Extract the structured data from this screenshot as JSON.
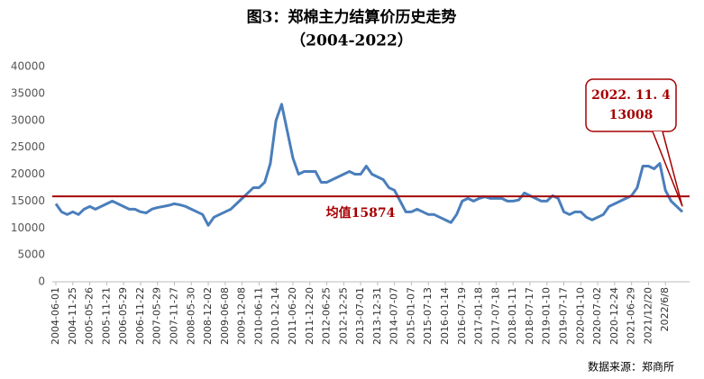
{
  "chart_data": {
    "type": "line",
    "title": "图3：郑棉主力结算价历史走势",
    "subtitle": "（2004-2022）",
    "source": "数据来源：郑商所",
    "categories": [
      "2004-06-01",
      null,
      null,
      "2004-11-25",
      null,
      null,
      "2005-05-26",
      null,
      null,
      "2005-11-21",
      null,
      null,
      "2006-05-29",
      null,
      null,
      "2006-11-22",
      null,
      null,
      "2007-05-29",
      null,
      null,
      "2007-11-27",
      null,
      null,
      "2008-05-30",
      null,
      null,
      "2008-12-02",
      null,
      null,
      "2009-06-08",
      null,
      null,
      "2009-12-08",
      null,
      null,
      "2010-06-11",
      null,
      null,
      "2010-12-14",
      null,
      null,
      "2011-06-20",
      null,
      null,
      "2011-12-20",
      null,
      null,
      "2012-06-25",
      null,
      null,
      "2012-12-25",
      null,
      null,
      "2013-07-01",
      null,
      null,
      "2013-12-31",
      null,
      null,
      "2014-07-07",
      null,
      null,
      "2015-01-07",
      null,
      null,
      "2015-07-13",
      null,
      null,
      "2016-01-14",
      null,
      null,
      "2016-07-19",
      null,
      null,
      "2017-01-18",
      null,
      null,
      "2017-07-18",
      null,
      null,
      "2018-01-11",
      null,
      null,
      "2018-07-17",
      null,
      null,
      "2019-01-10",
      null,
      null,
      "2019-07-17",
      null,
      null,
      "2020-01-10",
      null,
      null,
      "2020-07-02",
      null,
      null,
      "2020-12-24",
      null,
      null,
      "2021-06-29",
      null,
      null,
      "2021/12/20",
      null,
      null,
      "2022/6/8",
      null,
      null,
      null
    ],
    "series": [
      {
        "name": "郑棉主力结算价",
        "color": "#4a7ebb",
        "values": [
          14500,
          13000,
          12500,
          13000,
          12500,
          13500,
          14000,
          13500,
          14000,
          14500,
          15000,
          14500,
          14000,
          13500,
          13500,
          13000,
          12800,
          13500,
          13800,
          14000,
          14200,
          14500,
          14300,
          14000,
          13500,
          13000,
          12500,
          10500,
          12000,
          12500,
          13000,
          13500,
          14500,
          15500,
          16500,
          17500,
          17500,
          18500,
          22000,
          30000,
          33000,
          28000,
          23000,
          20000,
          20500,
          20500,
          20500,
          18500,
          18500,
          19000,
          19500,
          20000,
          20500,
          20000,
          20000,
          21500,
          20000,
          19500,
          19000,
          17500,
          17000,
          15000,
          13000,
          13000,
          13500,
          13000,
          12500,
          12500,
          12000,
          11500,
          11000,
          12500,
          15000,
          15500,
          15000,
          15500,
          15800,
          15500,
          15500,
          15500,
          15000,
          15000,
          15200,
          16500,
          16000,
          15500,
          15000,
          15000,
          16000,
          15500,
          13000,
          12500,
          13000,
          13000,
          12000,
          11500,
          12000,
          12500,
          14000,
          14500,
          15000,
          15500,
          16000,
          17500,
          21500,
          21500,
          21000,
          22000,
          17000,
          15000,
          14000,
          13008
        ]
      }
    ],
    "mean": {
      "value": 15874,
      "label": "均值15874",
      "color": "#a50000"
    },
    "annotation": {
      "date": "2022. 11. 4",
      "value": 13008
    },
    "ylim": [
      0,
      40000
    ],
    "yticks": [
      0,
      5000,
      10000,
      15000,
      20000,
      25000,
      30000,
      35000,
      40000
    ],
    "grid": false
  }
}
